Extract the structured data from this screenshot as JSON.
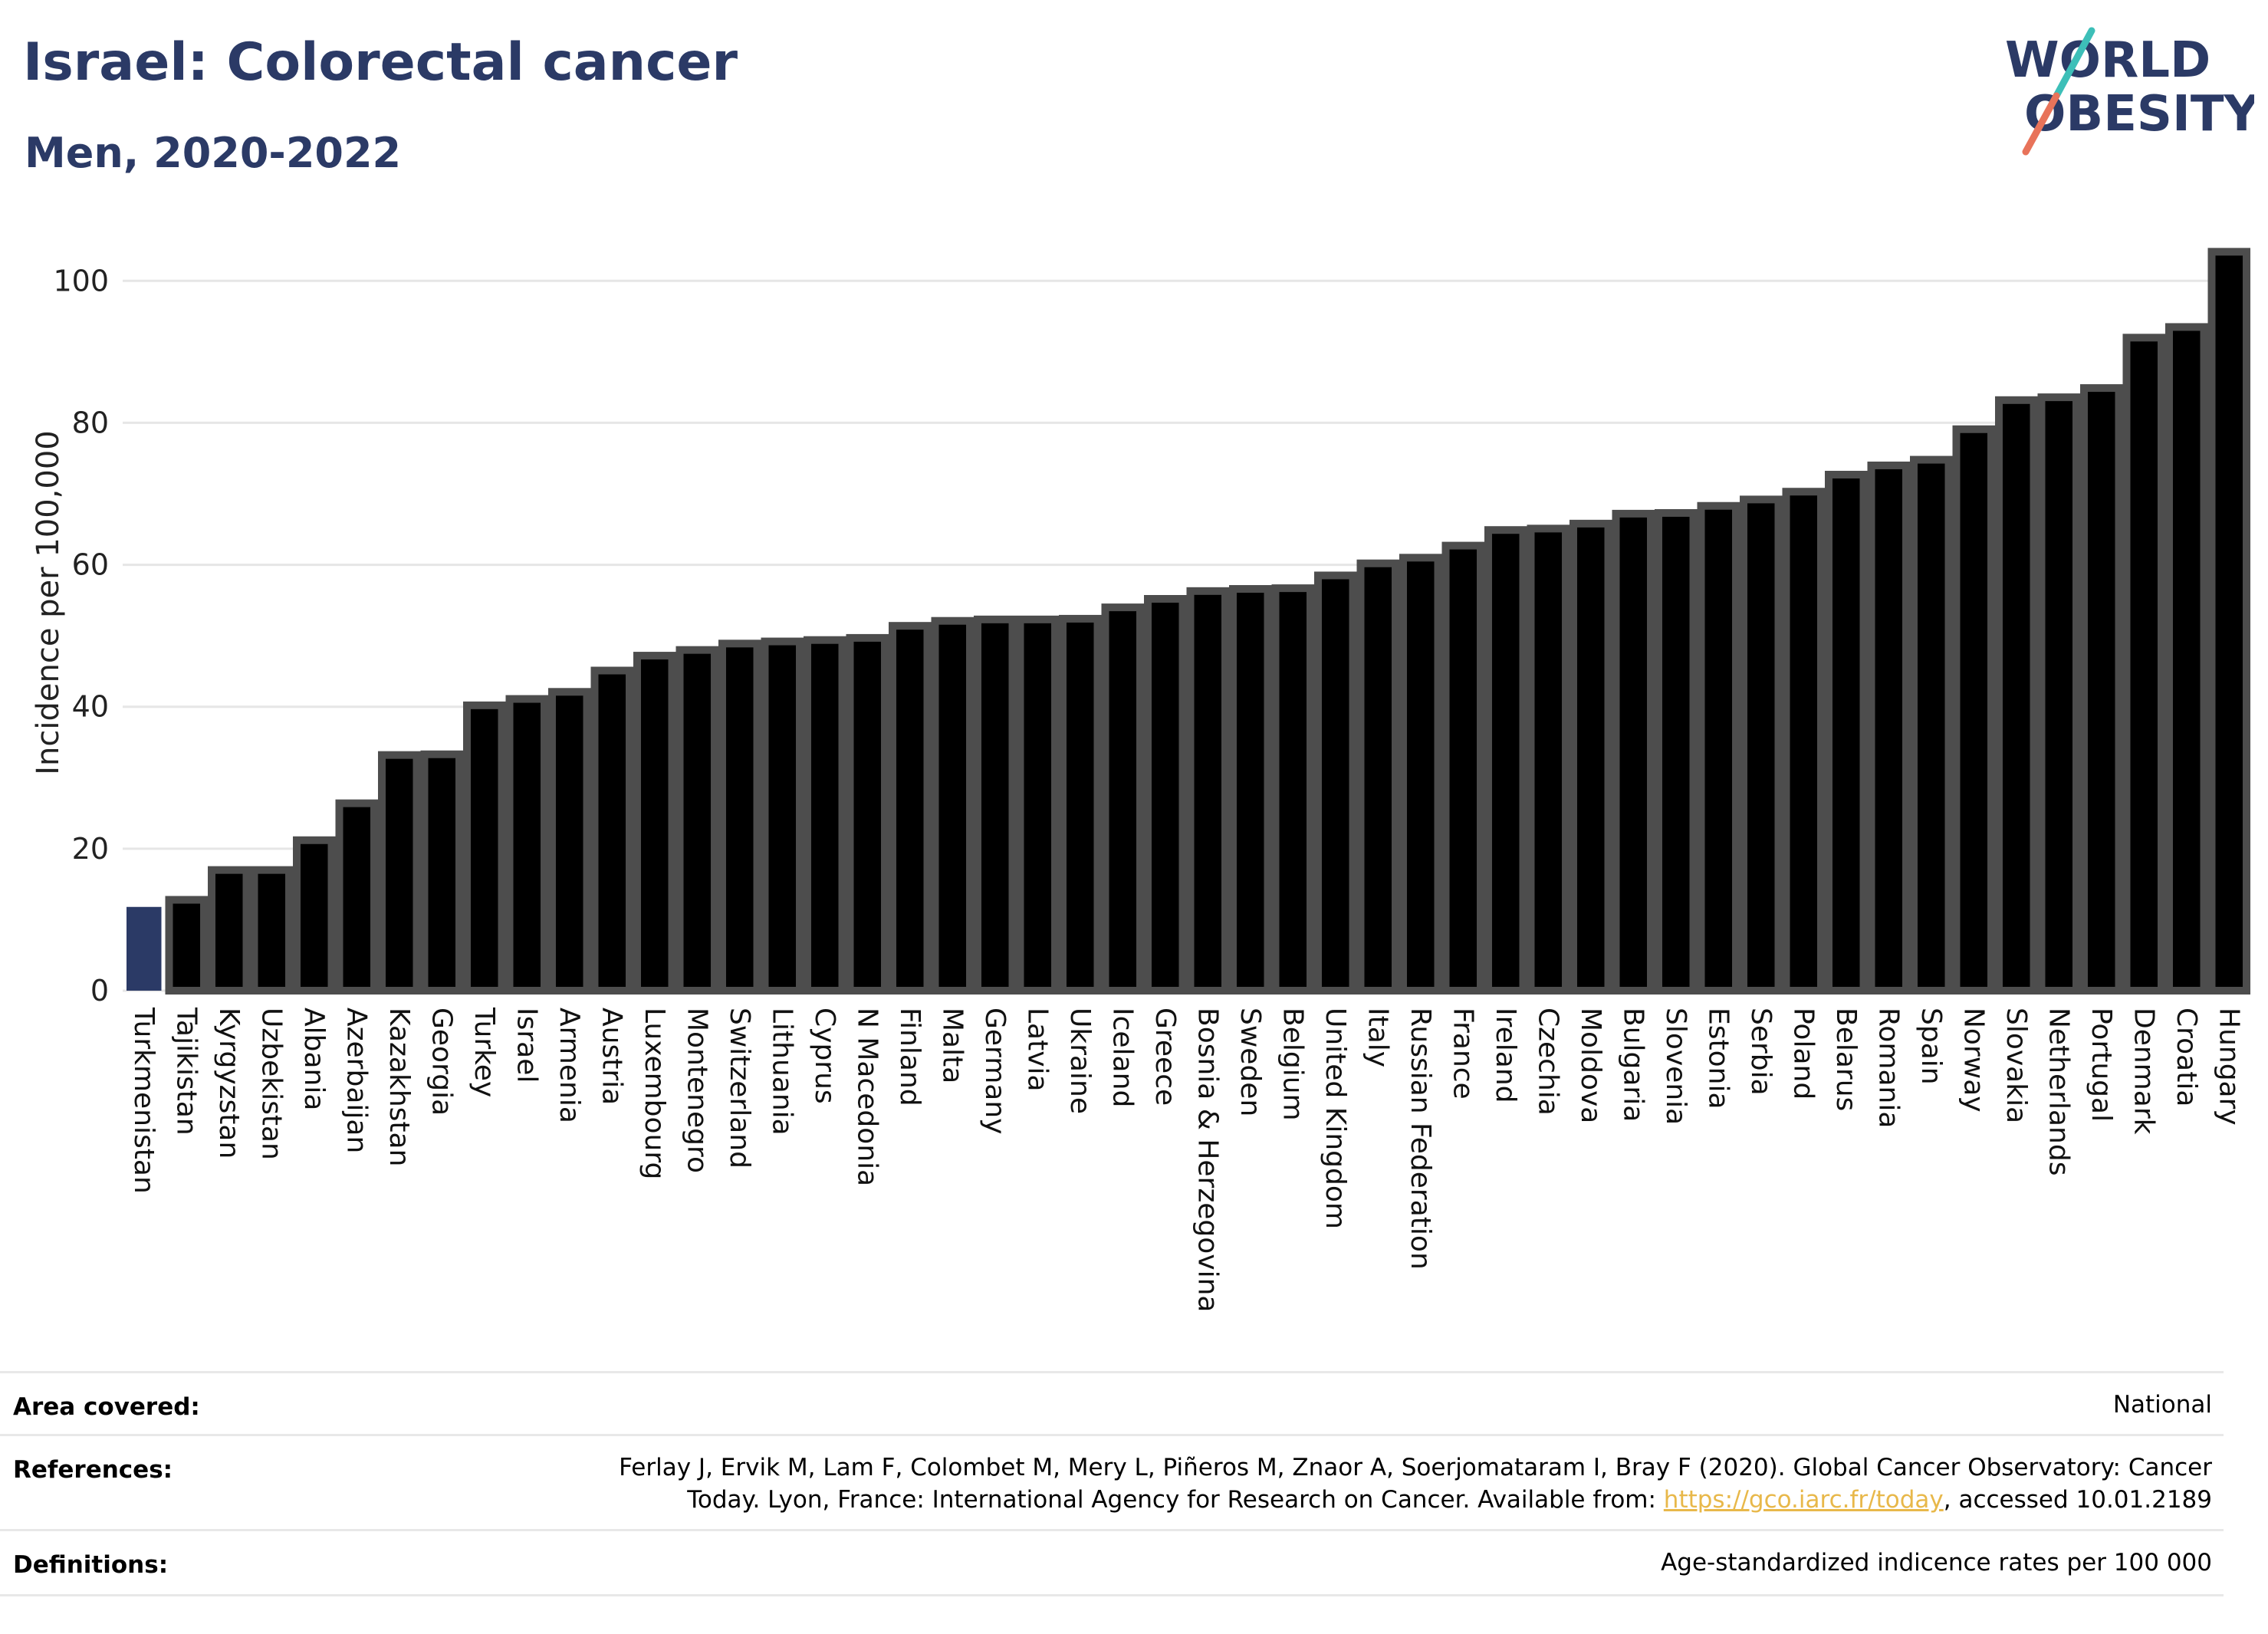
{
  "header": {
    "title": "Israel: Colorectal cancer",
    "subtitle": "Men, 2020-2022"
  },
  "logo": {
    "line1": "WORLD",
    "line2": "OBESITY",
    "colors": {
      "text": "#2b3a66",
      "slash_top": "#3dbfb8",
      "slash_bottom": "#e8735a"
    }
  },
  "chart_data": {
    "type": "bar",
    "ylabel": "Incidence per 100,000",
    "ylim": [
      0,
      105
    ],
    "yticks": [
      0,
      20,
      40,
      60,
      80,
      100
    ],
    "grid": true,
    "highlight_color": "#2b3a66",
    "bar_color": "#000000",
    "bar_border_color": "#4d4d4d",
    "categories": [
      "Turkmenistan",
      "Tajikistan",
      "Kyrgyzstan",
      "Uzbekistan",
      "Albania",
      "Azerbaijan",
      "Kazakhstan",
      "Georgia",
      "Turkey",
      "Israel",
      "Armenia",
      "Austria",
      "Luxembourg",
      "Montenegro",
      "Switzerland",
      "Lithuania",
      "Cyprus",
      "N Macedonia",
      "Finland",
      "Malta",
      "Germany",
      "Latvia",
      "Ukraine",
      "Iceland",
      "Greece",
      "Bosnia & Herzegovina",
      "Sweden",
      "Belgium",
      "United Kingdom",
      "Italy",
      "Russian Federation",
      "France",
      "Ireland",
      "Czechia",
      "Moldova",
      "Bulgaria",
      "Slovenia",
      "Estonia",
      "Serbia",
      "Poland",
      "Belarus",
      "Romania",
      "Spain",
      "Norway",
      "Slovakia",
      "Netherlands",
      "Portugal",
      "Denmark",
      "Croatia",
      "Hungary"
    ],
    "values": [
      11.8,
      12.8,
      17.0,
      17.0,
      21.2,
      26.4,
      33.2,
      33.3,
      40.2,
      41.1,
      42.1,
      45.1,
      47.2,
      48.0,
      48.9,
      49.2,
      49.4,
      49.7,
      51.4,
      52.1,
      52.3,
      52.3,
      52.4,
      54.0,
      55.2,
      56.3,
      56.6,
      56.7,
      58.5,
      60.2,
      61.0,
      62.7,
      64.9,
      65.1,
      65.8,
      67.2,
      67.3,
      68.3,
      69.2,
      70.3,
      72.7,
      74.0,
      74.8,
      79.1,
      83.2,
      83.6,
      84.9,
      92.0,
      93.5,
      104.1
    ],
    "highlight_index": 0
  },
  "info": {
    "area_label": "Area covered:",
    "area_value": "National",
    "references_label": "References:",
    "references_line1": "Ferlay J, Ervik M, Lam F, Colombet M, Mery L, Piñeros M, Znaor A, Soerjomataram I, Bray F (2020). Global Cancer Observatory: Cancer",
    "references_line2_pre": "Today. Lyon, France: International Agency for Research on Cancer. Available from: ",
    "references_link": "https://gco.iarc.fr/today",
    "references_line2_post": ", accessed 10.01.2189",
    "definitions_label": "Definitions:",
    "definitions_value": "Age-standardized indicence rates per 100 000"
  }
}
